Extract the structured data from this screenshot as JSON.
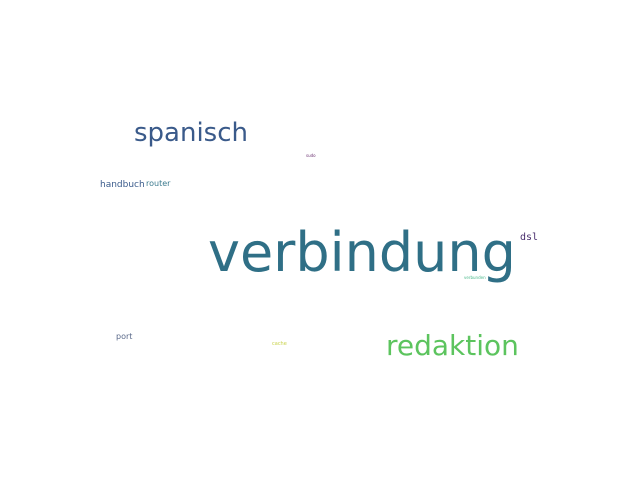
{
  "words": {
    "verbindung": {
      "text": "verbindung",
      "color": "#2f6f86"
    },
    "spanisch": {
      "text": "spanisch",
      "color": "#3a5a8a"
    },
    "redaktion": {
      "text": "redaktion",
      "color": "#5cc45e"
    },
    "handbuch": {
      "text": "handbuch",
      "color": "#3b5c8c"
    },
    "router": {
      "text": "router",
      "color": "#3b7a8e"
    },
    "dsl": {
      "text": "dsl",
      "color": "#4a2f6e"
    },
    "port": {
      "text": "port",
      "color": "#5b6a8a"
    },
    "cache": {
      "text": "cache",
      "color": "#c8d24a"
    },
    "sudo": {
      "text": "sudo",
      "color": "#6a2f70"
    },
    "verbunden": {
      "text": "verbunden",
      "color": "#4ab88a"
    }
  }
}
